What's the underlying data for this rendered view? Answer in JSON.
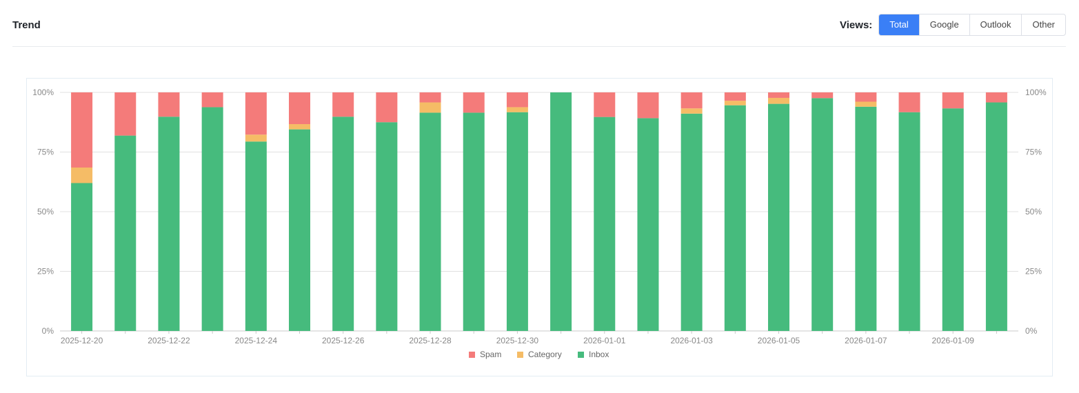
{
  "header": {
    "title": "Trend",
    "views_label": "Views:",
    "views": [
      "Total",
      "Google",
      "Outlook",
      "Other"
    ],
    "active_view": "Total"
  },
  "colors": {
    "spam": "#f47b7a",
    "category": "#f5bc66",
    "inbox": "#46bb7d",
    "accent": "#3a7ff6"
  },
  "chart_data": {
    "type": "bar",
    "stacked": true,
    "percent": true,
    "categories": [
      "2025-12-20",
      "2025-12-21",
      "2025-12-22",
      "2025-12-23",
      "2025-12-24",
      "2025-12-25",
      "2025-12-26",
      "2025-12-27",
      "2025-12-28",
      "2025-12-29",
      "2025-12-30",
      "2025-12-31",
      "2026-01-01",
      "2026-01-02",
      "2026-01-03",
      "2026-01-04",
      "2026-01-05",
      "2026-01-06",
      "2026-01-07",
      "2026-01-08",
      "2026-01-09",
      "2026-01-10"
    ],
    "x_tick_labels": [
      "2025-12-20",
      "2025-12-22",
      "2025-12-24",
      "2025-12-26",
      "2025-12-28",
      "2025-12-30",
      "2026-01-01",
      "2026-01-03",
      "2026-01-05",
      "2026-01-07",
      "2026-01-09"
    ],
    "series": [
      {
        "name": "Inbox",
        "values": [
          62,
          81.9,
          89.8,
          93.8,
          79.4,
          84.5,
          89.8,
          87.5,
          91.5,
          91.5,
          91.7,
          100,
          89.7,
          89.2,
          91.1,
          94.6,
          95.2,
          97.6,
          94.0,
          91.7,
          93.3,
          95.8
        ]
      },
      {
        "name": "Category",
        "values": [
          6.5,
          0,
          0,
          0,
          2.9,
          2.2,
          0,
          0,
          4.3,
          0,
          2.1,
          0,
          0,
          0,
          2.2,
          1.9,
          2.5,
          0,
          2.1,
          0,
          0,
          0
        ]
      },
      {
        "name": "Spam",
        "values": [
          31.5,
          18.1,
          10.2,
          6.2,
          17.7,
          13.3,
          10.2,
          12.5,
          4.2,
          8.5,
          6.2,
          0,
          10.3,
          10.8,
          6.7,
          3.5,
          2.3,
          2.4,
          3.9,
          8.3,
          6.7,
          4.2
        ]
      }
    ],
    "y_ticks": [
      "0%",
      "25%",
      "50%",
      "75%",
      "100%"
    ],
    "ylim": [
      0,
      100
    ],
    "legend": [
      "Spam",
      "Category",
      "Inbox"
    ],
    "legend_position": "bottom",
    "grid": true
  }
}
